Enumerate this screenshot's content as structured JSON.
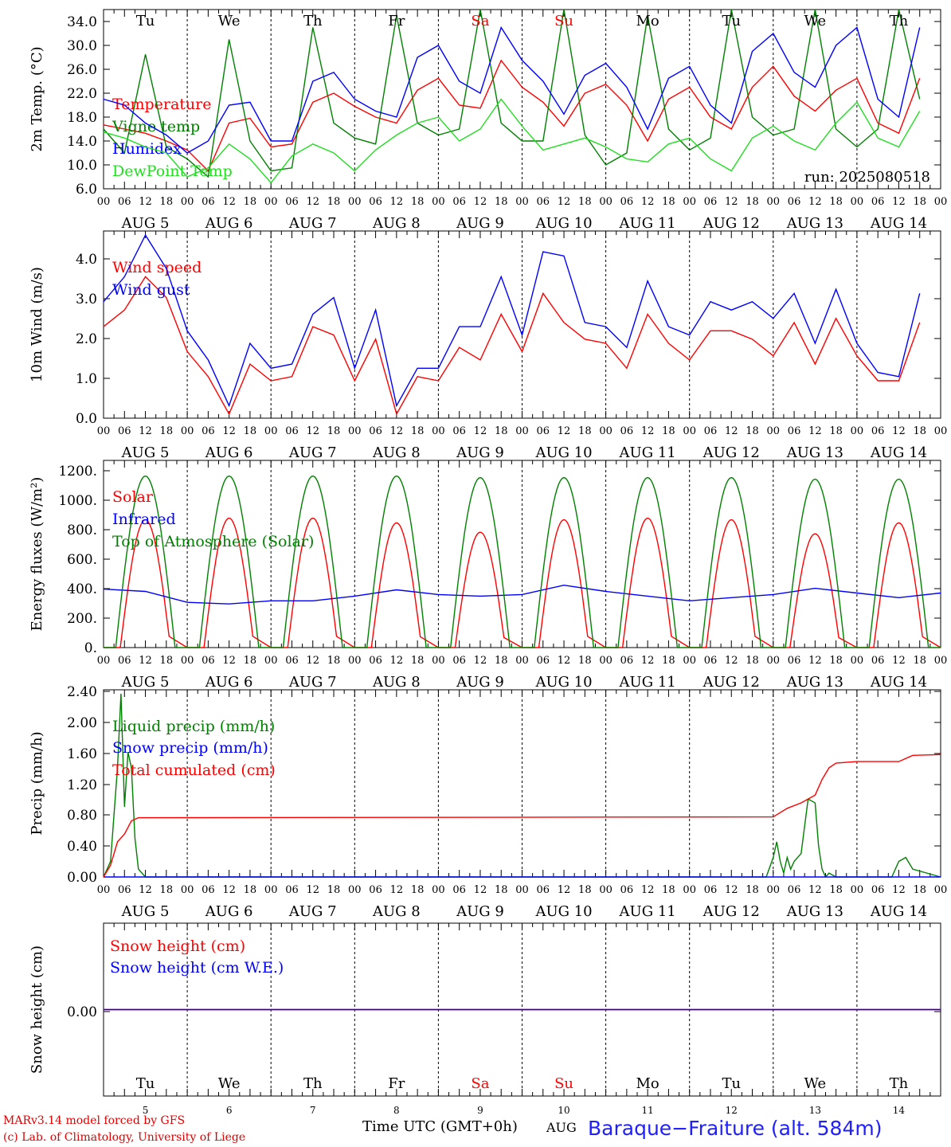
{
  "footer": {
    "model": "MARv3.14 model forced by GFS",
    "copyright": "(c) Lab. of Climatology, University of Liege",
    "xlabel": "Time UTC (GMT+0h)",
    "month": "AUG",
    "station": "Baraque−Fraiture (alt. 584m)"
  },
  "days": {
    "names": [
      "Tu",
      "We",
      "Th",
      "Fr",
      "Sa",
      "Su",
      "Mo",
      "Tu",
      "We",
      "Th"
    ],
    "weekend_index": [
      4,
      5
    ],
    "dates": [
      "5",
      "6",
      "7",
      "8",
      "9",
      "10",
      "11",
      "12",
      "13",
      "14"
    ],
    "month_labels": [
      "AUG  5",
      "AUG  6",
      "AUG  7",
      "AUG  8",
      "AUG  9",
      "AUG 10",
      "AUG 11",
      "AUG 12",
      "AUG 13",
      "AUG 14"
    ],
    "hour_ticks": [
      "00",
      "06",
      "12",
      "18"
    ]
  },
  "colors": {
    "red": "#ff0000",
    "blue": "#0000ff",
    "green": "#008000",
    "lightgreen": "#22dd22",
    "weekend": "#ff0000",
    "axis": "#000000"
  },
  "chart_data": [
    {
      "type": "line",
      "ylabel": "2m Temp. (°C)",
      "ylim": [
        6.0,
        36.0
      ],
      "yticks": [
        "6.0",
        "10.0",
        "14.0",
        "18.0",
        "22.0",
        "26.0",
        "30.0",
        "34.0"
      ],
      "annotation": "run: 2025080518",
      "x_unit": "hours since 5 AUG 00 UTC",
      "series": [
        {
          "name": "Temperature",
          "color": "red",
          "x": [
            0,
            6,
            12,
            18,
            24,
            30,
            36,
            42,
            48,
            54,
            60,
            66,
            72,
            78,
            84,
            90,
            96,
            102,
            108,
            114,
            120,
            126,
            132,
            138,
            144,
            150,
            156,
            162,
            168,
            174,
            180,
            186,
            192,
            198,
            204,
            210,
            216,
            222,
            228,
            234
          ],
          "y": [
            16.7,
            16.0,
            15.3,
            14.0,
            12.5,
            9.0,
            17.0,
            17.8,
            13.0,
            13.5,
            20.5,
            22.0,
            19.8,
            18.0,
            17.0,
            22.5,
            24.5,
            20.0,
            19.5,
            27.5,
            23.0,
            20.5,
            16.5,
            22.0,
            23.5,
            20.0,
            14.0,
            21.0,
            23.0,
            18.0,
            16.0,
            23.0,
            26.5,
            21.5,
            19.0,
            22.5,
            24.5,
            17.0,
            15.3,
            24.5
          ]
        },
        {
          "name": "Vigne temp",
          "color": "green",
          "x": [
            0,
            6,
            12,
            18,
            24,
            30,
            36,
            42,
            48,
            54,
            60,
            66,
            72,
            78,
            84,
            90,
            96,
            102,
            108,
            114,
            120,
            126,
            132,
            138,
            144,
            150,
            156,
            162,
            168,
            174,
            180,
            186,
            192,
            198,
            204,
            210,
            216,
            222,
            228,
            234
          ],
          "y": [
            16.0,
            12.0,
            28.5,
            13.0,
            11.0,
            8.0,
            31.0,
            14.0,
            9.0,
            9.5,
            33.0,
            17.0,
            14.5,
            13.5,
            35.0,
            17.0,
            15.0,
            16.0,
            36.0,
            17.0,
            14.0,
            14.0,
            36.0,
            15.0,
            10.0,
            12.0,
            35.0,
            16.0,
            12.5,
            14.5,
            36.0,
            18.0,
            15.0,
            16.0,
            36.0,
            16.0,
            13.0,
            16.0,
            36.0,
            21.0
          ]
        },
        {
          "name": "Humidex",
          "color": "blue",
          "x": [
            0,
            6,
            12,
            18,
            24,
            30,
            36,
            42,
            48,
            54,
            60,
            66,
            72,
            78,
            84,
            90,
            96,
            102,
            108,
            114,
            120,
            126,
            132,
            138,
            144,
            150,
            156,
            162,
            168,
            174,
            180,
            186,
            192,
            198,
            204,
            210,
            216,
            222,
            228,
            234
          ],
          "y": [
            21.0,
            20.0,
            17.0,
            15.0,
            12.0,
            14.0,
            20.0,
            20.5,
            14.0,
            14.0,
            24.0,
            25.5,
            21.0,
            19.0,
            18.0,
            28.0,
            30.0,
            24.0,
            22.0,
            33.0,
            27.5,
            24.0,
            18.5,
            25.0,
            27.0,
            23.0,
            16.0,
            24.5,
            26.5,
            20.0,
            17.0,
            29.0,
            32.0,
            25.5,
            23.0,
            30.0,
            33.0,
            21.0,
            18.0,
            33.0
          ]
        },
        {
          "name": "DewPoint Temp",
          "color": "lightgreen",
          "x": [
            0,
            6,
            12,
            18,
            24,
            30,
            36,
            42,
            48,
            54,
            60,
            66,
            72,
            78,
            84,
            90,
            96,
            102,
            108,
            114,
            120,
            126,
            132,
            138,
            144,
            150,
            156,
            162,
            168,
            174,
            180,
            186,
            192,
            198,
            204,
            210,
            216,
            222,
            228,
            234
          ],
          "y": [
            15.5,
            14.5,
            13.0,
            12.0,
            8.0,
            9.5,
            13.5,
            11.0,
            7.0,
            11.5,
            13.5,
            12.0,
            9.0,
            12.5,
            15.0,
            17.0,
            18.0,
            14.0,
            16.0,
            21.0,
            16.5,
            12.5,
            13.5,
            14.5,
            13.0,
            11.0,
            10.5,
            13.5,
            14.5,
            11.0,
            9.0,
            14.5,
            16.5,
            14.0,
            12.5,
            17.0,
            20.5,
            14.5,
            13.0,
            19.0
          ]
        }
      ]
    },
    {
      "type": "line",
      "ylabel": "10m Wind (m/s)",
      "ylim": [
        0.0,
        4.5
      ],
      "yticks": [
        "0.0",
        "1.0",
        "2.0",
        "3.0",
        "4.0"
      ],
      "x_unit": "hours since 5 AUG 00 UTC",
      "series": [
        {
          "name": "Wind speed",
          "color": "red",
          "x": [
            0,
            6,
            12,
            18,
            24,
            30,
            36,
            42,
            48,
            54,
            60,
            66,
            72,
            78,
            84,
            90,
            96,
            102,
            108,
            114,
            120,
            126,
            132,
            138,
            144,
            150,
            156,
            162,
            168,
            174,
            180,
            186,
            192,
            198,
            204,
            210,
            216,
            222,
            228,
            234
          ],
          "y": [
            2.2,
            2.6,
            3.4,
            2.9,
            1.6,
            1.0,
            0.1,
            1.3,
            0.9,
            1.0,
            2.2,
            2.0,
            0.9,
            1.9,
            0.1,
            1.0,
            0.9,
            1.7,
            1.4,
            2.5,
            1.6,
            3.0,
            2.3,
            1.9,
            1.8,
            1.2,
            2.5,
            1.8,
            1.4,
            2.1,
            2.1,
            1.9,
            1.5,
            2.3,
            1.3,
            2.4,
            1.5,
            0.9,
            0.9,
            2.3
          ]
        },
        {
          "name": "Wind gust",
          "color": "blue",
          "x": [
            0,
            6,
            12,
            18,
            24,
            30,
            36,
            42,
            48,
            54,
            60,
            66,
            72,
            78,
            84,
            90,
            96,
            102,
            108,
            114,
            120,
            126,
            132,
            138,
            144,
            150,
            156,
            162,
            168,
            174,
            180,
            186,
            192,
            198,
            204,
            210,
            216,
            222,
            228,
            234
          ],
          "y": [
            2.8,
            3.4,
            4.4,
            3.6,
            2.1,
            1.4,
            0.3,
            1.8,
            1.2,
            1.3,
            2.5,
            2.9,
            1.2,
            2.6,
            0.3,
            1.2,
            1.2,
            2.2,
            2.2,
            3.4,
            2.0,
            4.0,
            3.9,
            2.3,
            2.2,
            1.7,
            3.3,
            2.2,
            2.0,
            2.8,
            2.6,
            2.8,
            2.4,
            3.0,
            1.8,
            3.1,
            1.8,
            1.1,
            1.0,
            3.0
          ]
        }
      ]
    },
    {
      "type": "line",
      "ylabel": "Energy fluxes (W/m²)",
      "ylim": [
        0,
        1200
      ],
      "yticks": [
        "0.",
        "200.",
        "400.",
        "600.",
        "800.",
        "1000.",
        "1200."
      ],
      "x_unit": "hours since 5 AUG 00 UTC",
      "series": [
        {
          "name": "Solar",
          "color": "red",
          "kind": "diurnal",
          "peaks": [
            820,
            830,
            830,
            800,
            740,
            820,
            830,
            820,
            730,
            800
          ]
        },
        {
          "name": "Infrared",
          "color": "blue",
          "x": [
            0,
            12,
            24,
            36,
            48,
            60,
            72,
            84,
            96,
            108,
            120,
            132,
            144,
            156,
            168,
            180,
            192,
            204,
            216,
            228,
            240
          ],
          "y": [
            375,
            360,
            290,
            280,
            300,
            300,
            330,
            370,
            340,
            330,
            340,
            400,
            360,
            330,
            300,
            320,
            340,
            380,
            350,
            320,
            350
          ]
        },
        {
          "name": "Top of Atmosphere (Solar)",
          "color": "green",
          "kind": "diurnal",
          "peaks": [
            1100,
            1100,
            1100,
            1100,
            1090,
            1090,
            1090,
            1090,
            1080,
            1080
          ]
        }
      ]
    },
    {
      "type": "line",
      "ylabel": "Precip (mm/h)",
      "ylim": [
        0.0,
        2.4
      ],
      "yticks": [
        "0.00",
        "0.40",
        "0.80",
        "1.20",
        "1.60",
        "2.00",
        "2.40"
      ],
      "x_unit": "hours since 5 AUG 00 UTC",
      "series": [
        {
          "name": "Liquid precip (mm/h)",
          "color": "green",
          "x": [
            0,
            2,
            4,
            5,
            6,
            7,
            8,
            9,
            10,
            12,
            40,
            190,
            192,
            193,
            194,
            195,
            196,
            197,
            198,
            200,
            202,
            204,
            205,
            206,
            207,
            208,
            210,
            212,
            220,
            226,
            228,
            230,
            232,
            240
          ],
          "y": [
            0,
            0.2,
            1.4,
            2.35,
            0.9,
            1.6,
            1.4,
            0.5,
            0.1,
            0,
            0,
            0,
            0.25,
            0.45,
            0.2,
            0.05,
            0.25,
            0.1,
            0.2,
            0.3,
            1.0,
            0.95,
            0.4,
            0.1,
            0.0,
            0.05,
            0,
            0,
            0,
            0,
            0.2,
            0.25,
            0.1,
            0
          ]
        },
        {
          "name": "Snow precip (mm/h)",
          "color": "blue",
          "x": [
            0,
            240
          ],
          "y": [
            0,
            0
          ]
        },
        {
          "name": "Total cumulated (cm)",
          "color": "red",
          "x": [
            0,
            2,
            4,
            6,
            8,
            10,
            192,
            196,
            200,
            204,
            206,
            208,
            210,
            216,
            228,
            232,
            240
          ],
          "y": [
            0,
            0.15,
            0.45,
            0.55,
            0.72,
            0.76,
            0.77,
            0.88,
            0.95,
            1.05,
            1.25,
            1.4,
            1.46,
            1.48,
            1.48,
            1.56,
            1.57
          ]
        }
      ]
    },
    {
      "type": "line",
      "ylabel": "Snow height (cm)",
      "ylim": [
        -1.0,
        1.0
      ],
      "yticks": [
        "0.00"
      ],
      "x_unit": "hours since 5 AUG 00 UTC",
      "series": [
        {
          "name": "Snow height (cm)",
          "color": "red",
          "x": [
            0,
            240
          ],
          "y": [
            0,
            0
          ]
        },
        {
          "name": "Snow height (cm W.E.)",
          "color": "blue",
          "x": [
            0,
            240
          ],
          "y": [
            0,
            0
          ]
        }
      ]
    }
  ]
}
